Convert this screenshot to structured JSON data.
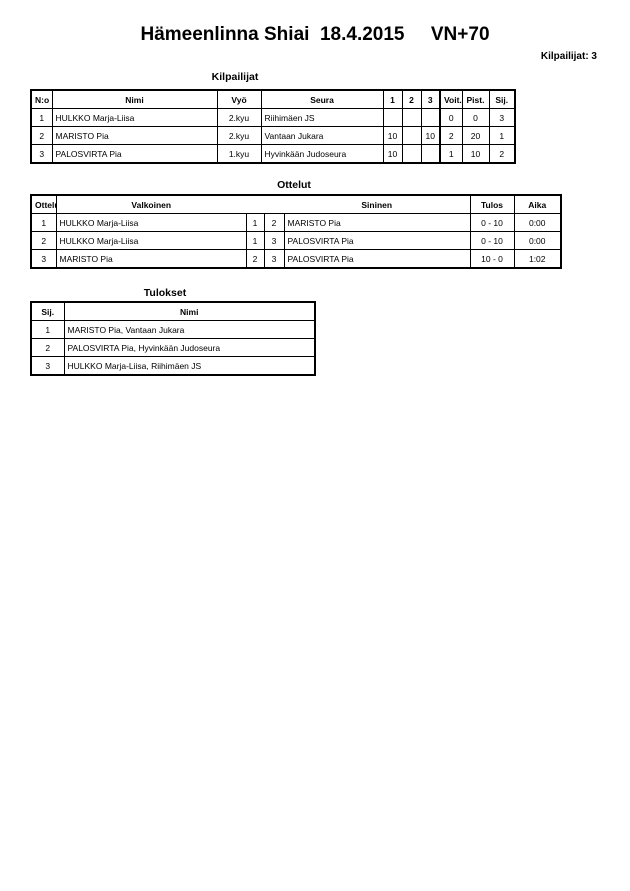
{
  "title": "Hämeenlinna Shiai  18.4.2015     VN+70",
  "competitor_count": "Kilpailijat: 3",
  "competitors": {
    "heading": "Kilpailijat",
    "headers": [
      "N:o",
      "Nimi",
      "Vyö",
      "Seura",
      "1",
      "2",
      "3",
      "Voit.",
      "Pist.",
      "Sij."
    ],
    "rows": [
      [
        "1",
        "HULKKO Marja-Liisa",
        "2.kyu",
        "Riihimäen JS",
        "",
        "",
        "",
        "0",
        "0",
        "3"
      ],
      [
        "2",
        "MARISTO Pia",
        "2.kyu",
        "Vantaan Jukara",
        "10",
        "",
        "10",
        "2",
        "20",
        "1"
      ],
      [
        "3",
        "PALOSVIRTA Pia",
        "1.kyu",
        "Hyvinkään Judoseura",
        "10",
        "",
        "",
        "1",
        "10",
        "2"
      ]
    ]
  },
  "matches": {
    "heading": "Ottelut",
    "headers": [
      "Ottelu",
      "Valkoinen",
      "",
      "",
      "Sininen",
      "Tulos",
      "Aika"
    ],
    "rows": [
      [
        "1",
        "HULKKO Marja-Liisa",
        "1",
        "2",
        "MARISTO Pia",
        "0 - 10",
        "0:00"
      ],
      [
        "2",
        "HULKKO Marja-Liisa",
        "1",
        "3",
        "PALOSVIRTA Pia",
        "0 - 10",
        "0:00"
      ],
      [
        "3",
        "MARISTO Pia",
        "2",
        "3",
        "PALOSVIRTA Pia",
        "10 - 0",
        "1:02"
      ]
    ]
  },
  "results": {
    "heading": "Tulokset",
    "headers": [
      "Sij.",
      "Nimi"
    ],
    "rows": [
      [
        "1",
        "MARISTO Pia, Vantaan Jukara"
      ],
      [
        "2",
        "PALOSVIRTA Pia, Hyvinkään Judoseura"
      ],
      [
        "3",
        "HULKKO Marja-Liisa, Riihimäen JS"
      ]
    ]
  }
}
